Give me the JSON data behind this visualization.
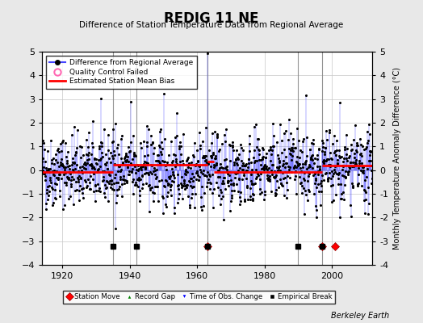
{
  "title": "REDIG 11 NE",
  "subtitle": "Difference of Station Temperature Data from Regional Average",
  "ylabel": "Monthly Temperature Anomaly Difference (°C)",
  "xlim": [
    1914,
    2012
  ],
  "ylim": [
    -4,
    5
  ],
  "yticks": [
    -4,
    -3,
    -2,
    -1,
    0,
    1,
    2,
    3,
    4,
    5
  ],
  "xticks": [
    1920,
    1940,
    1960,
    1980,
    2000
  ],
  "background_color": "#e8e8e8",
  "plot_bg_color": "#ffffff",
  "grid_color": "#c8c8c8",
  "line_color": "#4444ff",
  "dot_color": "#000000",
  "bias_color": "#ff0000",
  "random_seed": 42,
  "start_year": 1914,
  "end_year": 2011,
  "bias_segments": [
    {
      "start": 1914,
      "end": 1935,
      "value": -0.08
    },
    {
      "start": 1935,
      "end": 1963,
      "value": 0.22
    },
    {
      "start": 1963,
      "end": 1965,
      "value": 0.38
    },
    {
      "start": 1965,
      "end": 1990,
      "value": -0.08
    },
    {
      "start": 1990,
      "end": 1997,
      "value": -0.08
    },
    {
      "start": 1997,
      "end": 2012,
      "value": 0.18
    }
  ],
  "vertical_lines": [
    1935,
    1942,
    1963,
    1990,
    1997
  ],
  "station_moves": [
    1963,
    1997,
    2001
  ],
  "empirical_breaks": [
    1935,
    1942,
    1963,
    1990,
    1997
  ],
  "marker_y": -3.2,
  "berkeley_earth_text": "Berkeley Earth"
}
